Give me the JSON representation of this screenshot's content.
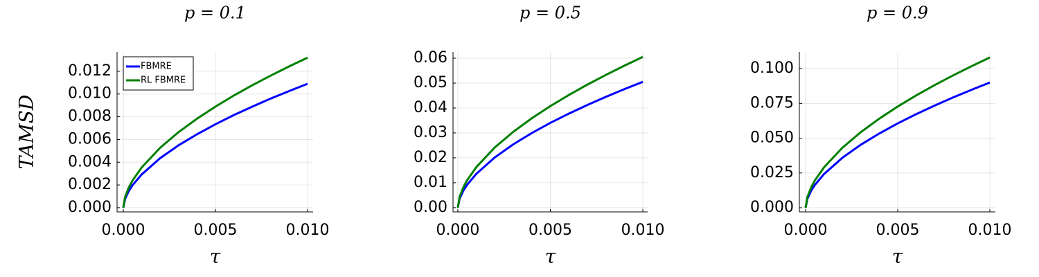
{
  "chart_data": [
    {
      "type": "line",
      "title": "p = 0.1",
      "xlabel": "τ",
      "ylabel": "TAMSD",
      "legend": "top left",
      "grid": true,
      "x": [
        0,
        0.0001,
        0.0003,
        0.0005,
        0.001,
        0.002,
        0.003,
        0.004,
        0.005,
        0.006,
        0.007,
        0.008,
        0.009,
        0.01
      ],
      "xlim": [
        -0.00034,
        0.0103
      ],
      "xticks": [
        {
          "value": 0,
          "label": "0.000"
        },
        {
          "value": 0.005,
          "label": "0.005"
        },
        {
          "value": 0.01,
          "label": "0.010"
        }
      ],
      "ylim": [
        -0.00037,
        0.0137
      ],
      "yticks": [
        {
          "value": 0,
          "label": "0.000"
        },
        0.002,
        0.004,
        0.006,
        0.008,
        {
          "value": 0.01,
          "label": "0.010"
        },
        0.012
      ],
      "series": [
        {
          "name": "FBMRE",
          "color": "#0000ff",
          "values": [
            0,
            0.00079,
            0.00148,
            0.00198,
            0.00293,
            0.00436,
            0.00549,
            0.00646,
            0.00734,
            0.00815,
            0.00889,
            0.0096,
            0.01026,
            0.0109
          ]
        },
        {
          "name": "RL FBMRE",
          "color": "#008000",
          "values": [
            0,
            0.00096,
            0.00179,
            0.00239,
            0.00355,
            0.00527,
            0.00665,
            0.00783,
            0.00889,
            0.00987,
            0.01077,
            0.01162,
            0.01243,
            0.0132
          ]
        }
      ]
    },
    {
      "type": "line",
      "title": "p = 0.5",
      "xlabel": "τ",
      "grid": true,
      "x": [
        0,
        0.0001,
        0.0003,
        0.0005,
        0.001,
        0.002,
        0.003,
        0.004,
        0.005,
        0.006,
        0.007,
        0.008,
        0.009,
        0.01
      ],
      "xlim": [
        -0.00026,
        0.01026
      ],
      "xticks": [
        {
          "value": 0,
          "label": "0.000"
        },
        {
          "value": 0.005,
          "label": "0.005"
        },
        {
          "value": 0.01,
          "label": "0.010"
        }
      ],
      "ylim": [
        -0.0017,
        0.0625
      ],
      "yticks": [
        {
          "value": 0,
          "label": "0.00"
        },
        0.01,
        0.02,
        0.03,
        0.04,
        0.05,
        0.06
      ],
      "series": [
        {
          "color": "#0000ff",
          "values": [
            0,
            0.00366,
            0.00684,
            0.00916,
            0.01358,
            0.02018,
            0.02543,
            0.02995,
            0.03402,
            0.03774,
            0.04121,
            0.04447,
            0.04756,
            0.0505
          ]
        },
        {
          "color": "#008000",
          "values": [
            0,
            0.00438,
            0.0082,
            0.01097,
            0.01627,
            0.02418,
            0.03046,
            0.03588,
            0.04076,
            0.04522,
            0.04937,
            0.05328,
            0.05697,
            0.0605
          ]
        }
      ]
    },
    {
      "type": "line",
      "title": "p = 0.9",
      "xlabel": "τ",
      "grid": true,
      "x": [
        0,
        0.0001,
        0.0003,
        0.0005,
        0.001,
        0.002,
        0.003,
        0.004,
        0.005,
        0.006,
        0.007,
        0.008,
        0.009,
        0.01
      ],
      "xlim": [
        -0.00034,
        0.0103
      ],
      "xticks": [
        {
          "value": 0,
          "label": "0.000"
        },
        {
          "value": 0.005,
          "label": "0.005"
        },
        {
          "value": 0.01,
          "label": "0.010"
        }
      ],
      "ylim": [
        -0.003,
        0.112
      ],
      "yticks": [
        {
          "value": 0,
          "label": "0.000"
        },
        0.025,
        {
          "value": 0.05,
          "label": "0.050"
        },
        0.075,
        {
          "value": 0.1,
          "label": "0.100"
        }
      ],
      "series": [
        {
          "color": "#0000ff",
          "values": [
            0,
            0.00652,
            0.0122,
            0.01633,
            0.02421,
            0.03596,
            0.04532,
            0.05337,
            0.06063,
            0.06727,
            0.07344,
            0.07925,
            0.08475,
            0.09
          ]
        },
        {
          "color": "#008000",
          "values": [
            0,
            0.00782,
            0.01463,
            0.01959,
            0.02905,
            0.04316,
            0.05438,
            0.06404,
            0.07276,
            0.08072,
            0.08813,
            0.0951,
            0.1017,
            0.108
          ]
        }
      ]
    }
  ]
}
